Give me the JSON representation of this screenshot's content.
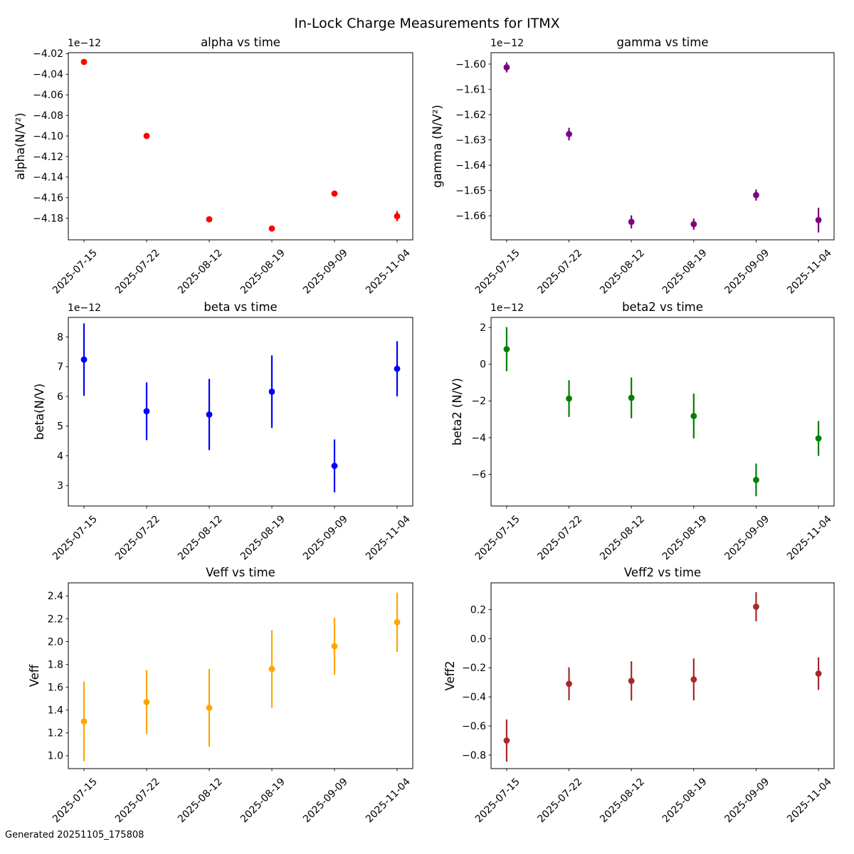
{
  "figure": {
    "title": "In-Lock Charge Measurements for ITMX",
    "footer": "Generated 20251105_175808",
    "background": "#ffffff",
    "text_color": "#000000"
  },
  "chart_data": [
    {
      "type": "scatter",
      "key": "alpha",
      "title": "alpha vs time",
      "xlabel": "",
      "ylabel": "alpha(N/V²)",
      "offset_text": "1e−12",
      "color": "#ff0000",
      "grid": false,
      "legend": "none",
      "x_tick_rotation": 45,
      "categories": [
        "2025-07-15",
        "2025-07-22",
        "2025-08-12",
        "2025-08-19",
        "2025-09-09",
        "2025-11-04"
      ],
      "values": [
        -4.028,
        -4.1,
        -4.181,
        -4.19,
        -4.156,
        -4.178
      ],
      "errors": [
        0.002,
        0.002,
        0.002,
        0.002,
        0.002,
        0.005
      ],
      "ylim": [
        -4.201,
        -4.019
      ],
      "ytick_values": [
        -4.02,
        -4.04,
        -4.06,
        -4.08,
        -4.1,
        -4.12,
        -4.14,
        -4.16,
        -4.18
      ],
      "ytick_labels": [
        "−4.02",
        "−4.04",
        "−4.06",
        "−4.08",
        "−4.10",
        "−4.12",
        "−4.14",
        "−4.16",
        "−4.18"
      ]
    },
    {
      "type": "scatter",
      "key": "gamma",
      "title": "gamma vs time",
      "xlabel": "",
      "ylabel": "gamma (N/V²)",
      "offset_text": "1e−12",
      "color": "#800080",
      "grid": false,
      "legend": "none",
      "x_tick_rotation": 45,
      "categories": [
        "2025-07-15",
        "2025-07-22",
        "2025-08-12",
        "2025-08-19",
        "2025-09-09",
        "2025-11-04"
      ],
      "values": [
        -1.6013,
        -1.6277,
        -1.6624,
        -1.6633,
        -1.6518,
        -1.6617
      ],
      "errors": [
        0.002,
        0.0025,
        0.0026,
        0.0022,
        0.0022,
        0.0049
      ],
      "ylim": [
        -1.6695,
        -1.5955
      ],
      "ytick_values": [
        -1.6,
        -1.61,
        -1.62,
        -1.63,
        -1.64,
        -1.65,
        -1.66
      ],
      "ytick_labels": [
        "−1.60",
        "−1.61",
        "−1.62",
        "−1.63",
        "−1.64",
        "−1.65",
        "−1.66"
      ]
    },
    {
      "type": "scatter",
      "key": "beta",
      "title": "beta vs time",
      "xlabel": "",
      "ylabel": "beta(N/V)",
      "offset_text": "1e−12",
      "color": "#0000ff",
      "grid": false,
      "legend": "none",
      "x_tick_rotation": 45,
      "categories": [
        "2025-07-15",
        "2025-07-22",
        "2025-08-12",
        "2025-08-19",
        "2025-09-09",
        "2025-11-04"
      ],
      "values": [
        7.24,
        5.5,
        5.39,
        6.16,
        3.66,
        6.93
      ],
      "errors": [
        1.22,
        0.97,
        1.2,
        1.22,
        0.89,
        0.93
      ],
      "ylim": [
        2.31,
        8.66
      ],
      "ytick_values": [
        3,
        4,
        5,
        6,
        7,
        8
      ],
      "ytick_labels": [
        "3",
        "4",
        "5",
        "6",
        "7",
        "8"
      ]
    },
    {
      "type": "scatter",
      "key": "beta2",
      "title": "beta2 vs time",
      "xlabel": "",
      "ylabel": "beta2 (N/V)",
      "offset_text": "1e−12",
      "color": "#008000",
      "grid": false,
      "legend": "none",
      "x_tick_rotation": 45,
      "categories": [
        "2025-07-15",
        "2025-07-22",
        "2025-08-12",
        "2025-08-19",
        "2025-09-09",
        "2025-11-04"
      ],
      "values": [
        0.82,
        -1.87,
        -1.83,
        -2.82,
        -6.3,
        -4.04
      ],
      "errors": [
        1.2,
        1.0,
        1.11,
        1.22,
        0.89,
        0.95
      ],
      "ylim": [
        -7.72,
        2.55
      ],
      "ytick_values": [
        2,
        0,
        -2,
        -4,
        -6
      ],
      "ytick_labels": [
        "2",
        "0",
        "−2",
        "−4",
        "−6"
      ]
    },
    {
      "type": "scatter",
      "key": "Veff",
      "title": "Veff vs time",
      "xlabel": "",
      "ylabel": "Veff",
      "offset_text": "",
      "color": "#ffa500",
      "grid": false,
      "legend": "none",
      "x_tick_rotation": 45,
      "categories": [
        "2025-07-15",
        "2025-07-22",
        "2025-08-12",
        "2025-08-19",
        "2025-09-09",
        "2025-11-04"
      ],
      "values": [
        1.3,
        1.47,
        1.42,
        1.76,
        1.96,
        2.17
      ],
      "errors": [
        0.35,
        0.28,
        0.34,
        0.34,
        0.25,
        0.26
      ],
      "ylim": [
        0.887,
        2.515
      ],
      "ytick_values": [
        1.0,
        1.2,
        1.4,
        1.6,
        1.8,
        2.0,
        2.2,
        2.4
      ],
      "ytick_labels": [
        "1.0",
        "1.2",
        "1.4",
        "1.6",
        "1.8",
        "2.0",
        "2.2",
        "2.4"
      ]
    },
    {
      "type": "scatter",
      "key": "Veff2",
      "title": "Veff2 vs time",
      "xlabel": "",
      "ylabel": "Veff2",
      "offset_text": "",
      "color": "#a52a2a",
      "grid": false,
      "legend": "none",
      "x_tick_rotation": 45,
      "categories": [
        "2025-07-15",
        "2025-07-22",
        "2025-08-12",
        "2025-08-19",
        "2025-09-09",
        "2025-11-04"
      ],
      "values": [
        -0.7,
        -0.31,
        -0.29,
        -0.28,
        0.22,
        -0.24
      ],
      "errors": [
        0.145,
        0.113,
        0.135,
        0.144,
        0.1,
        0.112
      ],
      "ylim": [
        -0.893,
        0.384
      ],
      "ytick_values": [
        0.2,
        0.0,
        -0.2,
        -0.4,
        -0.6,
        -0.8
      ],
      "ytick_labels": [
        "0.2",
        "0.0",
        "−0.2",
        "−0.4",
        "−0.6",
        "−0.8"
      ]
    }
  ]
}
